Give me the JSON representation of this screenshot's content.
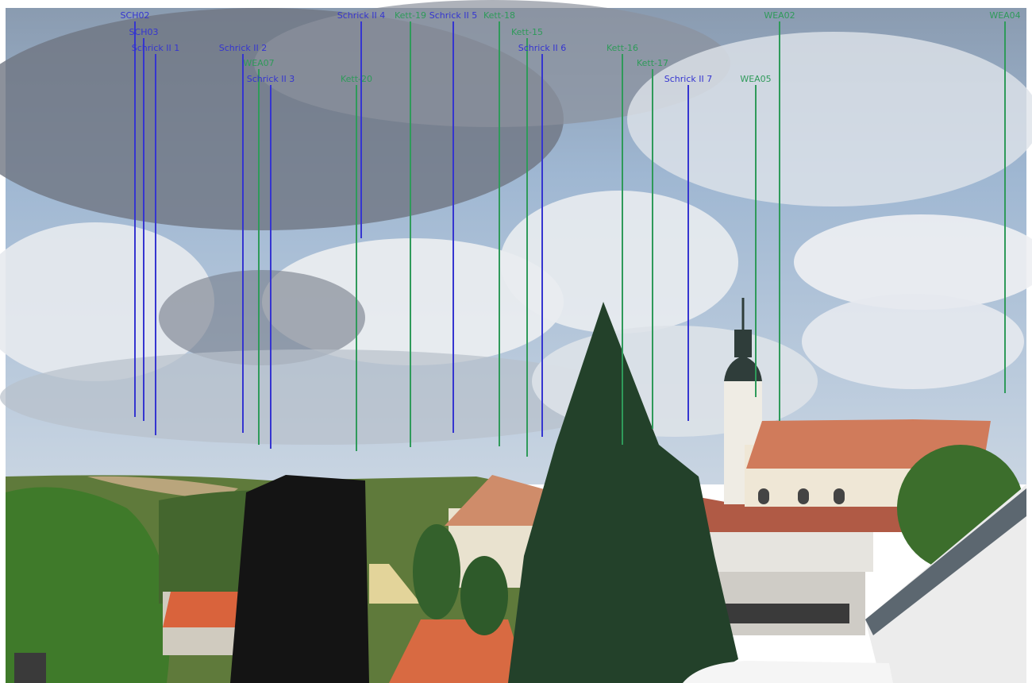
{
  "markers": [
    {
      "label": "SCH02",
      "color": "#3535d0"
    },
    {
      "label": "SCH03",
      "color": "#3535d0"
    },
    {
      "label": "Schrick II 1",
      "color": "#3535d0"
    },
    {
      "label": "Schrick II 2",
      "color": "#3535d0"
    },
    {
      "label": "WEA07",
      "color": "#2f9a5a"
    },
    {
      "label": "Schrick II 3",
      "color": "#3535d0"
    },
    {
      "label": "Kett-20",
      "color": "#2f9a5a"
    },
    {
      "label": "Schrick II 4",
      "color": "#3535d0"
    },
    {
      "label": "Kett-19",
      "color": "#2f9a5a"
    },
    {
      "label": "Schrick II 5",
      "color": "#3535d0"
    },
    {
      "label": "Kett-18",
      "color": "#2f9a5a"
    },
    {
      "label": "Kett-15",
      "color": "#2f9a5a"
    },
    {
      "label": "Schrick II 6",
      "color": "#3535d0"
    },
    {
      "label": "Kett-16",
      "color": "#2f9a5a"
    },
    {
      "label": "Kett-17",
      "color": "#2f9a5a"
    },
    {
      "label": "Schrick II 7",
      "color": "#3535d0"
    },
    {
      "label": "WEA05",
      "color": "#2f9a5a"
    },
    {
      "label": "WEA02",
      "color": "#2f9a5a"
    },
    {
      "label": "WEA04",
      "color": "#2f9a5a"
    }
  ]
}
